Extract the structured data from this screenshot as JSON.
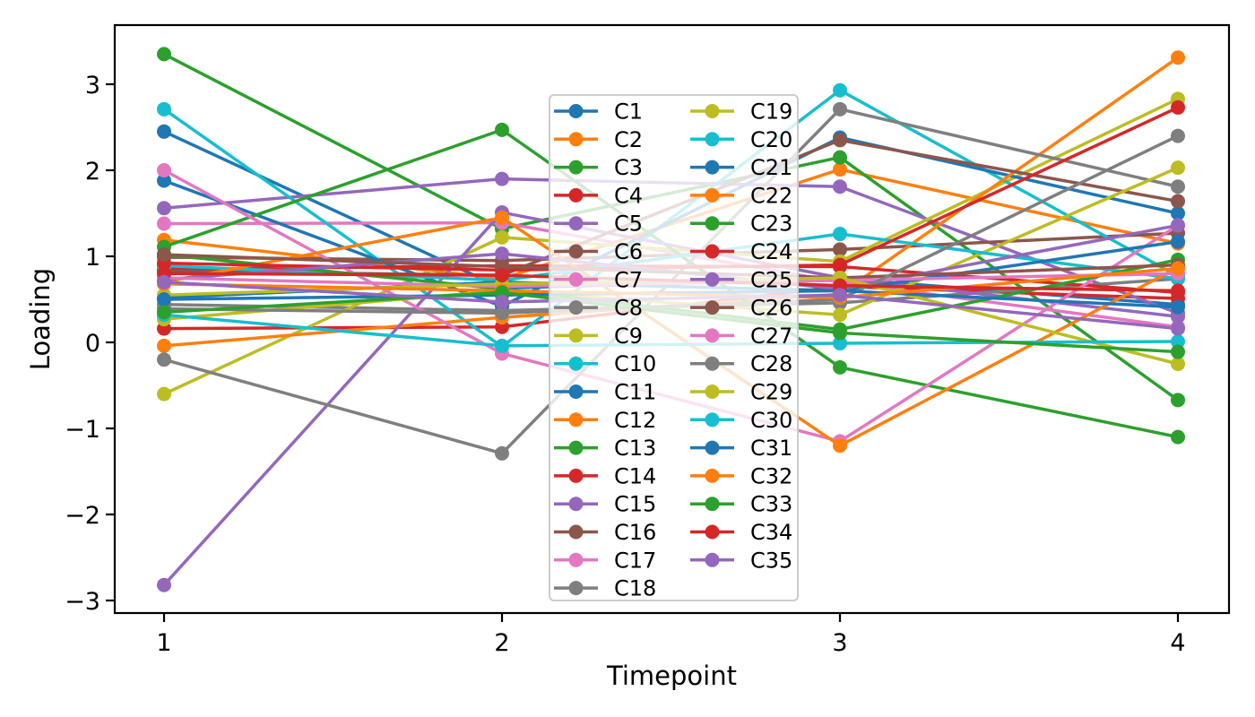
{
  "chart_data": {
    "type": "line",
    "title": "",
    "xlabel": "Timepoint",
    "ylabel": "Loading",
    "x": [
      1,
      2,
      3,
      4
    ],
    "xticks": [
      "1",
      "2",
      "3",
      "4"
    ],
    "yticks": [
      "3",
      "2",
      "1",
      "0",
      "−1",
      "−2",
      "−3"
    ],
    "ytick_values": [
      3,
      2,
      1,
      0,
      -1,
      -2,
      -3
    ],
    "xlim": [
      0.85,
      4.16
    ],
    "ylim": [
      -3.15,
      3.69
    ],
    "grid": false,
    "marker": "o",
    "legend": {
      "columns": 2,
      "position": "upper-center-inside",
      "frame_color": "#cccccc",
      "frame_alpha": 0.8
    },
    "series": [
      {
        "name": "C1",
        "color": "#1f77b4",
        "values": [
          2.45,
          0.63,
          0.74,
          0.44
        ]
      },
      {
        "name": "C2",
        "color": "#ff7f0e",
        "values": [
          1.19,
          0.74,
          2.01,
          1.15
        ]
      },
      {
        "name": "C3",
        "color": "#2ca02c",
        "values": [
          3.35,
          1.32,
          2.15,
          -0.67
        ]
      },
      {
        "name": "C4",
        "color": "#d62728",
        "values": [
          0.16,
          0.18,
          0.65,
          0.51
        ]
      },
      {
        "name": "C5",
        "color": "#9467bd",
        "values": [
          1.56,
          1.9,
          1.81,
          0.34
        ]
      },
      {
        "name": "C6",
        "color": "#8c564b",
        "values": [
          0.99,
          0.95,
          1.08,
          1.27
        ]
      },
      {
        "name": "C7",
        "color": "#e377c2",
        "values": [
          1.38,
          1.39,
          0.7,
          0.18
        ]
      },
      {
        "name": "C8",
        "color": "#7f7f7f",
        "values": [
          0.44,
          0.37,
          0.46,
          0.74
        ]
      },
      {
        "name": "C9",
        "color": "#bcbd22",
        "values": [
          -0.6,
          1.22,
          0.94,
          2.83
        ]
      },
      {
        "name": "C10",
        "color": "#17becf",
        "values": [
          2.71,
          -0.05,
          2.93,
          0.77
        ]
      },
      {
        "name": "C11",
        "color": "#1f77b4",
        "values": [
          1.88,
          0.42,
          2.38,
          1.5
        ]
      },
      {
        "name": "C12",
        "color": "#ff7f0e",
        "values": [
          -0.04,
          0.29,
          0.56,
          3.31
        ]
      },
      {
        "name": "C13",
        "color": "#2ca02c",
        "values": [
          1.11,
          2.47,
          -0.29,
          -1.1
        ]
      },
      {
        "name": "C14",
        "color": "#d62728",
        "values": [
          0.85,
          0.89,
          0.88,
          0.58
        ]
      },
      {
        "name": "C15",
        "color": "#9467bd",
        "values": [
          -2.82,
          1.51,
          0.75,
          0.3
        ]
      },
      {
        "name": "C16",
        "color": "#8c564b",
        "values": [
          0.83,
          0.78,
          2.35,
          1.64
        ]
      },
      {
        "name": "C17",
        "color": "#e377c2",
        "values": [
          2.0,
          -0.13,
          -1.15,
          1.36
        ]
      },
      {
        "name": "C18",
        "color": "#7f7f7f",
        "values": [
          -0.2,
          -1.29,
          2.71,
          1.81
        ]
      },
      {
        "name": "C19",
        "color": "#bcbd22",
        "values": [
          0.27,
          0.6,
          0.32,
          2.03
        ]
      },
      {
        "name": "C20",
        "color": "#17becf",
        "values": [
          0.89,
          0.72,
          1.26,
          0.74
        ]
      },
      {
        "name": "C21",
        "color": "#1f77b4",
        "values": [
          0.52,
          0.7,
          0.6,
          1.17
        ]
      },
      {
        "name": "C22",
        "color": "#ff7f0e",
        "values": [
          0.7,
          1.45,
          -1.2,
          0.87
        ]
      },
      {
        "name": "C23",
        "color": "#2ca02c",
        "values": [
          1.02,
          0.62,
          0.15,
          0.96
        ]
      },
      {
        "name": "C24",
        "color": "#d62728",
        "values": [
          0.92,
          0.84,
          0.9,
          2.73
        ]
      },
      {
        "name": "C25",
        "color": "#9467bd",
        "values": [
          0.73,
          1.03,
          0.62,
          1.36
        ]
      },
      {
        "name": "C26",
        "color": "#8c564b",
        "values": [
          1.02,
          0.88,
          0.75,
          0.9
        ]
      },
      {
        "name": "C27",
        "color": "#e377c2",
        "values": [
          0.75,
          0.65,
          0.72,
          0.8
        ]
      },
      {
        "name": "C28",
        "color": "#7f7f7f",
        "values": [
          0.39,
          0.34,
          0.5,
          2.4
        ]
      },
      {
        "name": "C29",
        "color": "#bcbd22",
        "values": [
          0.55,
          0.68,
          0.75,
          -0.25
        ]
      },
      {
        "name": "C30",
        "color": "#17becf",
        "values": [
          0.32,
          -0.04,
          -0.01,
          0.01
        ]
      },
      {
        "name": "C31",
        "color": "#1f77b4",
        "values": [
          0.5,
          0.55,
          0.6,
          0.41
        ]
      },
      {
        "name": "C32",
        "color": "#ff7f0e",
        "values": [
          0.68,
          0.6,
          0.52,
          0.86
        ]
      },
      {
        "name": "C33",
        "color": "#2ca02c",
        "values": [
          0.35,
          0.58,
          0.11,
          -0.11
        ]
      },
      {
        "name": "C34",
        "color": "#d62728",
        "values": [
          0.8,
          0.78,
          0.66,
          0.6
        ]
      },
      {
        "name": "C35",
        "color": "#9467bd",
        "values": [
          0.7,
          0.47,
          0.55,
          0.16
        ]
      }
    ]
  }
}
